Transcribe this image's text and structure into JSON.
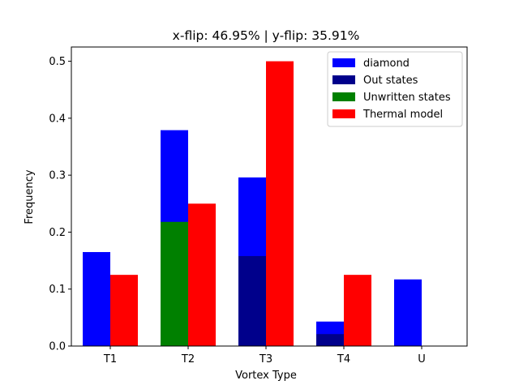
{
  "chart_data": {
    "type": "bar",
    "title": "x-flip:  46.95%  |  y-flip:  35.91%",
    "xlabel": "Vortex Type",
    "ylabel": "Frequency",
    "categories": [
      "T1",
      "T2",
      "T3",
      "T4",
      "U"
    ],
    "ylim": [
      0,
      0.525
    ],
    "yticks": [
      0.0,
      0.1,
      0.2,
      0.3,
      0.4,
      0.5
    ],
    "ytick_labels": [
      "0.0",
      "0.1",
      "0.2",
      "0.3",
      "0.4",
      "0.5"
    ],
    "grid": false,
    "legend_position": "top-right",
    "series": [
      {
        "name": "diamond",
        "color": "#0000ff",
        "position": "left",
        "values": [
          0.165,
          0.379,
          0.296,
          0.043,
          0.117
        ]
      },
      {
        "name": "Out states",
        "color": "#00008b",
        "position": "left",
        "values": [
          0.0,
          0.0,
          0.158,
          0.021,
          0.0
        ]
      },
      {
        "name": "Unwritten states",
        "color": "#008000",
        "position": "left",
        "values": [
          0.0,
          0.218,
          0.0,
          0.0,
          0.0
        ]
      },
      {
        "name": "Thermal model",
        "color": "#ff0000",
        "position": "right",
        "values": [
          0.125,
          0.25,
          0.5,
          0.125,
          0.0
        ]
      }
    ]
  }
}
